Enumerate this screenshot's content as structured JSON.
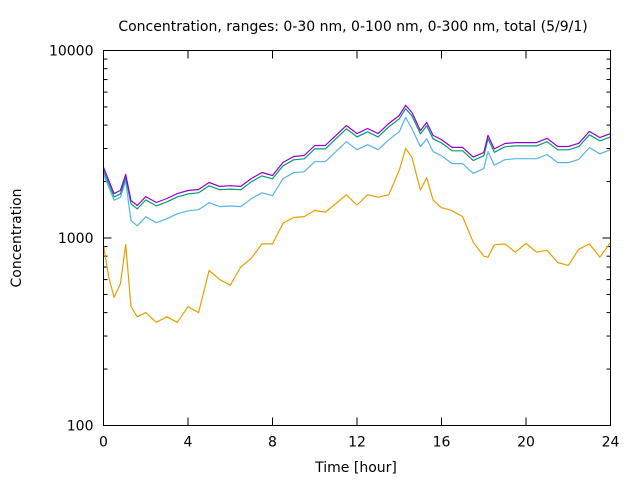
{
  "chart_data": {
    "type": "line",
    "title": "Concentration, ranges: 0-30 nm, 0-100 nm, 0-300 nm, total (5/9/1)",
    "xlabel": "Time [hour]",
    "ylabel": "Concentration",
    "xlim": [
      0,
      24
    ],
    "ylim": [
      100,
      10000
    ],
    "yscale": "log",
    "grid": false,
    "legend": "none",
    "xticks": [
      "0",
      "4",
      "8",
      "12",
      "16",
      "20",
      "24"
    ],
    "xtick_values": [
      0,
      4,
      8,
      12,
      16,
      20,
      24
    ],
    "yticks": [
      "100",
      "1000",
      "10000"
    ],
    "ytick_values": [
      100,
      1000,
      10000
    ],
    "x": [
      0,
      0.25,
      0.5,
      0.8,
      1.05,
      1.3,
      1.6,
      2,
      2.5,
      3,
      3.5,
      4,
      4.5,
      5,
      5.5,
      6,
      6.5,
      7,
      7.5,
      8,
      8.5,
      9,
      9.5,
      10,
      10.5,
      11,
      11.5,
      12,
      12.5,
      13,
      13.5,
      14,
      14.3,
      14.6,
      15,
      15.3,
      15.6,
      16,
      16.5,
      17,
      17.5,
      18,
      18.2,
      18.5,
      19,
      19.5,
      20,
      20.5,
      21,
      21.5,
      22,
      22.5,
      23,
      23.5,
      24
    ],
    "series": [
      {
        "name": "0-30 nm",
        "color": "#e69f00",
        "values": [
          912,
          616,
          482,
          570,
          923,
          430,
          380,
          400,
          355,
          380,
          355,
          430,
          400,
          671,
          600,
          560,
          700,
          780,
          930,
          930,
          1200,
          1286,
          1300,
          1403,
          1375,
          1528,
          1700,
          1500,
          1700,
          1650,
          1700,
          2300,
          3000,
          2700,
          1800,
          2100,
          1590,
          1450,
          1400,
          1300,
          950,
          800,
          790,
          920,
          930,
          840,
          935,
          840,
          860,
          740,
          714,
          870,
          930,
          790,
          946
        ]
      },
      {
        "name": "0-100 nm",
        "color": "#56b4e9",
        "values": [
          2187,
          1865,
          1588,
          1648,
          2008,
          1236,
          1162,
          1297,
          1206,
          1268,
          1346,
          1397,
          1416,
          1542,
          1470,
          1482,
          1470,
          1620,
          1743,
          1681,
          2074,
          2231,
          2258,
          2553,
          2553,
          2890,
          3264,
          2957,
          3146,
          2957,
          3341,
          3690,
          4400,
          3835,
          3068,
          3387,
          2890,
          2745,
          2494,
          2494,
          2214,
          2343,
          2890,
          2448,
          2617,
          2647,
          2647,
          2647,
          2788,
          2523,
          2523,
          2624,
          3035,
          2814,
          2957
        ]
      },
      {
        "name": "0-300 nm",
        "color": "#009e73",
        "values": [
          2282,
          1946,
          1657,
          1719,
          2096,
          1522,
          1430,
          1596,
          1484,
          1560,
          1657,
          1719,
          1742,
          1898,
          1809,
          1824,
          1809,
          1994,
          2145,
          2069,
          2428,
          2612,
          2644,
          2988,
          2988,
          3383,
          3822,
          3462,
          3684,
          3462,
          3911,
          4320,
          4896,
          4490,
          3591,
          3965,
          3383,
          3214,
          2919,
          2919,
          2592,
          2743,
          3383,
          2866,
          3064,
          3099,
          3099,
          3099,
          3264,
          2954,
          2954,
          3072,
          3553,
          3295,
          3462
        ]
      },
      {
        "name": "total",
        "color": "#9400d3",
        "values": [
          2377,
          2027,
          1726,
          1791,
          2183,
          1585,
          1490,
          1663,
          1546,
          1625,
          1726,
          1791,
          1815,
          1977,
          1884,
          1900,
          1884,
          2077,
          2234,
          2155,
          2529,
          2721,
          2754,
          3113,
          3113,
          3524,
          3981,
          3606,
          3837,
          3606,
          4074,
          4500,
          5100,
          4677,
          3741,
          4130,
          3524,
          3348,
          3041,
          3041,
          2700,
          2857,
          3524,
          2985,
          3192,
          3228,
          3228,
          3228,
          3400,
          3077,
          3077,
          3200,
          3701,
          3432,
          3606
        ]
      }
    ]
  }
}
